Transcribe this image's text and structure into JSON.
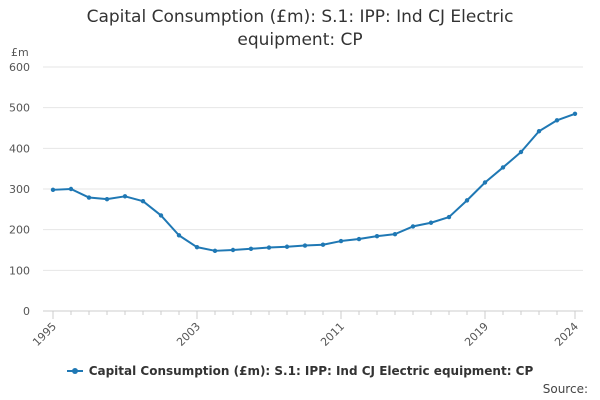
{
  "chart_data": {
    "type": "line",
    "title": "Capital Consumption (£m): S.1: IPP: Ind CJ Electric equipment: CP",
    "title_lines": [
      "Capital Consumption (£m): S.1: IPP: Ind CJ Electric",
      "equipment: CP"
    ],
    "ylabel": "£m",
    "xlabel": "",
    "ylim": [
      0,
      600
    ],
    "yticks": [
      0,
      100,
      200,
      300,
      400,
      500,
      600
    ],
    "xlim": [
      1995,
      2024
    ],
    "xticks": [
      1995,
      2003,
      2011,
      2019,
      2024
    ],
    "grid": true,
    "legend_position": "bottom",
    "series": [
      {
        "name": "Capital Consumption (£m): S.1: IPP: Ind CJ Electric equipment: CP",
        "color": "#1f78b4",
        "x": [
          1995,
          1996,
          1997,
          1998,
          1999,
          2000,
          2001,
          2002,
          2003,
          2004,
          2005,
          2006,
          2007,
          2008,
          2009,
          2010,
          2011,
          2012,
          2013,
          2014,
          2015,
          2016,
          2017,
          2018,
          2019,
          2020,
          2021,
          2022,
          2023,
          2024
        ],
        "values": [
          298,
          300,
          279,
          275,
          282,
          270,
          235,
          186,
          157,
          148,
          150,
          153,
          156,
          158,
          161,
          163,
          172,
          177,
          184,
          189,
          208,
          217,
          231,
          272,
          316,
          353,
          391,
          442,
          469,
          485
        ]
      }
    ]
  },
  "source_label": "Source:"
}
